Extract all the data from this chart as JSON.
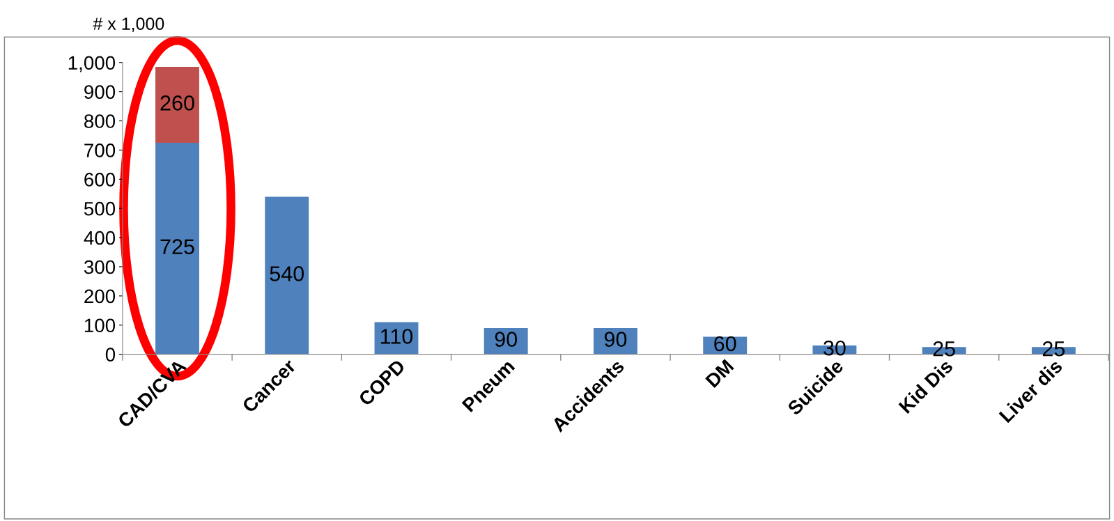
{
  "chart_data": {
    "type": "bar",
    "stacked": true,
    "ylabel": "# x 1,000",
    "categories": [
      "CAD/CVA",
      "Cancer",
      "COPD",
      "Pneum",
      "Accidents",
      "DM",
      "Suicide",
      "Kid Dis",
      "Liver dis"
    ],
    "series": [
      {
        "color": "#4f81bd",
        "values": [
          725,
          540,
          110,
          90,
          90,
          60,
          30,
          25,
          25
        ]
      },
      {
        "color": "#c0504d",
        "values": [
          260,
          null,
          null,
          null,
          null,
          null,
          null,
          null,
          null
        ]
      }
    ],
    "ylim": [
      0,
      1000
    ],
    "yticks": [
      0,
      100,
      200,
      300,
      400,
      500,
      600,
      700,
      800,
      900,
      {
        "value": 1000,
        "label": "1,000"
      }
    ],
    "data_labels": true,
    "grid": false,
    "legend": false
  }
}
